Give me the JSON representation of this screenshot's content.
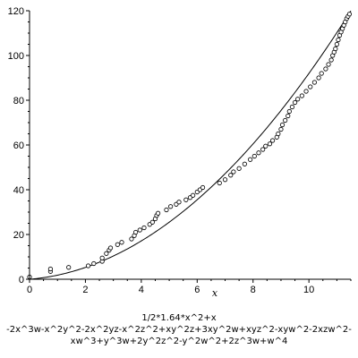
{
  "chart_data": {
    "type": "scatter",
    "xlabel": "x",
    "ylabel": "",
    "xlim": [
      0,
      11.5
    ],
    "ylim": [
      0,
      120
    ],
    "x_ticks": [
      0,
      2,
      4,
      6,
      8,
      10
    ],
    "y_ticks": [
      0,
      20,
      40,
      60,
      80,
      100,
      120
    ],
    "caption_lines": [
      "1/2*1.64*x^2+x",
      "-2x^3w-x^2y^2-2x^2yz-x^2z^2+xy^2z+3xy^2w+xyz^2-xyw^2-2xzw^2-",
      "xw^3+y^3w+2y^2z^2-y^2w^2+2z^3w+w^4"
    ],
    "grid": false,
    "curve": {
      "formula": "1/2*1.64*x^2+x"
    },
    "points": [
      [
        0.0,
        1.0
      ],
      [
        0.75,
        3.5
      ],
      [
        0.75,
        4.6
      ],
      [
        1.4,
        5.3
      ],
      [
        2.1,
        6.0
      ],
      [
        2.3,
        7.0
      ],
      [
        2.6,
        8.0
      ],
      [
        2.6,
        9.5
      ],
      [
        2.75,
        11.5
      ],
      [
        2.85,
        13.0
      ],
      [
        2.9,
        14.0
      ],
      [
        3.15,
        15.5
      ],
      [
        3.3,
        16.5
      ],
      [
        3.65,
        18.0
      ],
      [
        3.75,
        19.5
      ],
      [
        3.8,
        21.0
      ],
      [
        3.95,
        22.0
      ],
      [
        4.1,
        23.0
      ],
      [
        4.3,
        24.5
      ],
      [
        4.4,
        25.5
      ],
      [
        4.5,
        27.0
      ],
      [
        4.55,
        28.5
      ],
      [
        4.6,
        29.5
      ],
      [
        4.9,
        31.0
      ],
      [
        5.05,
        32.5
      ],
      [
        5.25,
        33.5
      ],
      [
        5.35,
        34.5
      ],
      [
        5.6,
        35.5
      ],
      [
        5.75,
        36.5
      ],
      [
        5.85,
        37.5
      ],
      [
        6.0,
        39.0
      ],
      [
        6.1,
        40.0
      ],
      [
        6.2,
        41.0
      ],
      [
        6.8,
        43.0
      ],
      [
        7.0,
        44.5
      ],
      [
        7.2,
        46.5
      ],
      [
        7.3,
        48.0
      ],
      [
        7.5,
        49.5
      ],
      [
        7.7,
        51.5
      ],
      [
        7.9,
        53.5
      ],
      [
        8.05,
        55.0
      ],
      [
        8.2,
        56.5
      ],
      [
        8.35,
        58.0
      ],
      [
        8.45,
        59.5
      ],
      [
        8.6,
        60.5
      ],
      [
        8.7,
        62.0
      ],
      [
        8.85,
        63.5
      ],
      [
        8.9,
        65.0
      ],
      [
        9.0,
        67.0
      ],
      [
        9.05,
        69.0
      ],
      [
        9.15,
        71.0
      ],
      [
        9.25,
        73.0
      ],
      [
        9.3,
        75.0
      ],
      [
        9.4,
        77.0
      ],
      [
        9.5,
        79.0
      ],
      [
        9.6,
        80.5
      ],
      [
        9.75,
        82.0
      ],
      [
        9.9,
        84.0
      ],
      [
        10.05,
        86.0
      ],
      [
        10.2,
        88.0
      ],
      [
        10.35,
        90.0
      ],
      [
        10.45,
        92.0
      ],
      [
        10.6,
        94.0
      ],
      [
        10.7,
        96.0
      ],
      [
        10.8,
        98.0
      ],
      [
        10.85,
        100.0
      ],
      [
        10.9,
        101.5
      ],
      [
        10.95,
        103.0
      ],
      [
        11.0,
        105.0
      ],
      [
        11.05,
        107.0
      ],
      [
        11.1,
        109.0
      ],
      [
        11.15,
        110.5
      ],
      [
        11.2,
        112.0
      ],
      [
        11.25,
        113.5
      ],
      [
        11.3,
        115.0
      ],
      [
        11.35,
        116.5
      ],
      [
        11.4,
        117.5
      ],
      [
        11.45,
        118.5
      ]
    ]
  }
}
